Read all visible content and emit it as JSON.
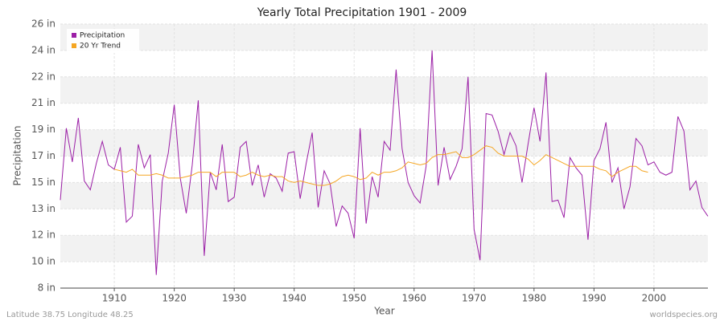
{
  "chart_data": {
    "type": "line",
    "title": "Yearly Total Precipitation 1901 - 2009",
    "x_label": "Year",
    "y_label": "Precipitation",
    "footer_left": "Latitude 38.75 Longitude 48.25",
    "footer_right": "worldspecies.org",
    "x": [
      1901,
      1902,
      1903,
      1904,
      1905,
      1906,
      1907,
      1908,
      1909,
      1910,
      1911,
      1912,
      1913,
      1914,
      1915,
      1916,
      1917,
      1918,
      1919,
      1920,
      1921,
      1922,
      1923,
      1924,
      1925,
      1926,
      1927,
      1928,
      1929,
      1930,
      1931,
      1932,
      1933,
      1934,
      1935,
      1936,
      1937,
      1938,
      1939,
      1940,
      1941,
      1942,
      1943,
      1944,
      1945,
      1946,
      1947,
      1948,
      1949,
      1950,
      1951,
      1952,
      1953,
      1954,
      1955,
      1956,
      1957,
      1958,
      1959,
      1960,
      1961,
      1962,
      1963,
      1964,
      1965,
      1966,
      1967,
      1968,
      1969,
      1970,
      1971,
      1972,
      1973,
      1974,
      1975,
      1976,
      1977,
      1978,
      1979,
      1980,
      1981,
      1982,
      1983,
      1984,
      1985,
      1986,
      1987,
      1988,
      1989,
      1990,
      1991,
      1992,
      1993,
      1994,
      1995,
      1996,
      1997,
      1998,
      1999,
      2000,
      2001,
      2002,
      2003,
      2004,
      2005,
      2006,
      2007,
      2008,
      2009
    ],
    "series": [
      {
        "name": "Precipitation",
        "color": "#9b1fa6",
        "values": [
          14.0,
          18.9,
          16.6,
          19.6,
          15.3,
          14.7,
          16.5,
          18.0,
          16.4,
          16.1,
          17.6,
          12.5,
          12.9,
          17.8,
          16.2,
          17.1,
          8.9,
          15.3,
          17.2,
          20.5,
          15.5,
          13.1,
          16.4,
          20.8,
          10.2,
          15.9,
          14.7,
          17.8,
          13.9,
          14.2,
          17.6,
          18.0,
          15.0,
          16.4,
          14.2,
          15.8,
          15.5,
          14.6,
          17.2,
          17.3,
          14.1,
          16.5,
          18.6,
          13.5,
          16.0,
          15.1,
          12.2,
          13.6,
          13.1,
          11.4,
          18.9,
          12.4,
          15.6,
          14.2,
          18.0,
          17.4,
          22.9,
          17.5,
          15.2,
          14.3,
          13.8,
          16.3,
          24.2,
          15.0,
          17.6,
          15.4,
          16.3,
          17.5,
          22.4,
          12.0,
          9.9,
          19.9,
          19.8,
          18.7,
          17.1,
          18.6,
          17.7,
          15.2,
          17.8,
          20.3,
          18.0,
          22.7,
          13.9,
          14.0,
          12.8,
          16.9,
          16.2,
          15.7,
          11.3,
          16.7,
          17.5,
          19.3,
          15.2,
          16.2,
          13.4,
          14.9,
          18.2,
          17.7,
          16.4,
          16.6,
          15.9,
          15.7,
          15.9,
          19.7,
          18.7,
          14.7,
          15.3,
          13.5,
          12.9
        ]
      },
      {
        "name": "20 Yr Trend",
        "color": "#f5a623",
        "values": [
          null,
          null,
          null,
          null,
          null,
          null,
          null,
          null,
          null,
          16.1,
          16.0,
          15.9,
          16.1,
          15.7,
          15.7,
          15.7,
          15.8,
          15.7,
          15.5,
          15.5,
          15.5,
          15.6,
          15.7,
          15.9,
          15.9,
          15.9,
          15.6,
          15.9,
          15.9,
          15.9,
          15.6,
          15.7,
          15.9,
          15.7,
          15.6,
          15.7,
          15.6,
          15.6,
          15.3,
          15.2,
          15.3,
          15.2,
          15.1,
          15.0,
          15.0,
          15.1,
          15.3,
          15.6,
          15.7,
          15.6,
          15.4,
          15.5,
          15.9,
          15.7,
          15.9,
          15.9,
          16.0,
          16.2,
          16.6,
          16.5,
          16.4,
          16.5,
          16.9,
          17.1,
          17.1,
          17.2,
          17.3,
          16.9,
          16.9,
          17.1,
          17.4,
          17.7,
          17.6,
          17.2,
          17.0,
          17.0,
          17.0,
          17.0,
          16.8,
          16.4,
          16.7,
          17.1,
          16.9,
          16.7,
          16.5,
          16.3,
          16.3,
          16.3,
          16.3,
          16.3,
          16.1,
          16.0,
          15.6,
          15.9,
          16.1,
          16.3,
          16.3,
          16.0,
          15.9,
          null,
          null,
          null,
          null,
          null,
          null,
          null,
          null,
          null,
          null
        ]
      }
    ],
    "xlim": [
      1901,
      2009
    ],
    "xticks": [
      1910,
      1920,
      1930,
      1940,
      1950,
      1960,
      1970,
      1980,
      1990,
      2000
    ],
    "ylim": [
      8,
      26
    ],
    "yticks": [
      {
        "value": 8,
        "label": "8 in"
      },
      {
        "value": 9.8,
        "label": "10 in"
      },
      {
        "value": 11.6,
        "label": "12 in"
      },
      {
        "value": 13.4,
        "label": "13 in"
      },
      {
        "value": 15.2,
        "label": "15 in"
      },
      {
        "value": 17,
        "label": "17 in"
      },
      {
        "value": 18.8,
        "label": "19 in"
      },
      {
        "value": 20.6,
        "label": "21 in"
      },
      {
        "value": 22.4,
        "label": "22 in"
      },
      {
        "value": 24.2,
        "label": "24 in"
      },
      {
        "value": 26,
        "label": "26 in"
      }
    ],
    "grid": true,
    "legend": "top-left"
  }
}
